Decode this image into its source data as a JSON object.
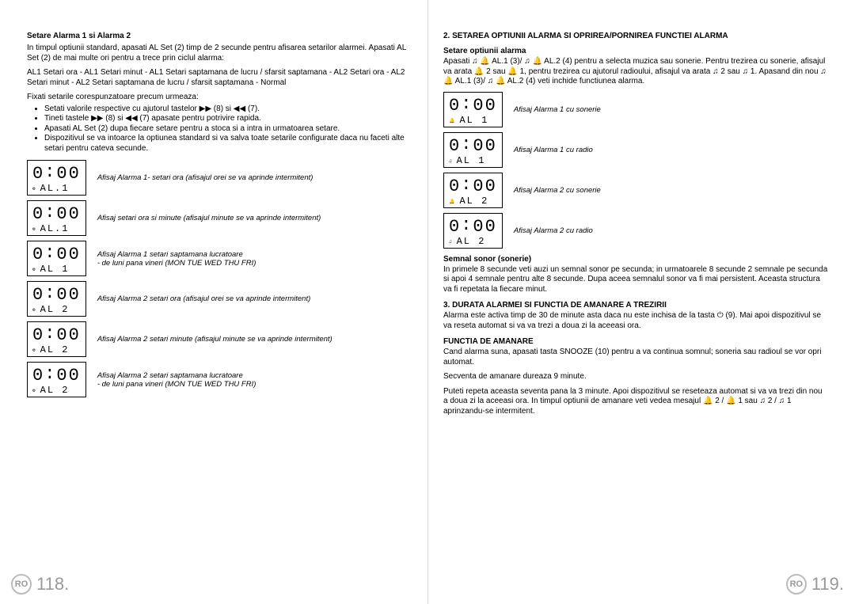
{
  "left": {
    "h_title": "Setare Alarma 1 si Alarma 2",
    "p1": "In timpul optiunii standard, apasati AL Set (2) timp de 2 secunde pentru afisarea setarilor alarmei. Apasati AL Set (2) de mai multe ori pentru a trece prin ciclul alarma:",
    "p2": "AL1 Setari ora - AL1 Setari minut - AL1 Setari saptamana de lucru / sfarsit saptamana - AL2 Setari ora - AL2 Setari minut - AL2 Setari saptamana de lucru / sfarsit saptamana - Normal",
    "p3": "Fixati setarile corespunzatoare precum urmeaza:",
    "bul1": "Setati valorile respective cu ajutorul tastelor ▶▶ (8) si ◀◀ (7).",
    "bul2": "Tineti tastele ▶▶ (8) si ◀◀ (7) apasate pentru potrivire rapida.",
    "bul3": "Apasati AL Set (2) dupa fiecare setare pentru a stoca si a intra in urmatoarea setare.",
    "bul4": "Dispozitivul se va intoarce la optiunea standard si va salva toate setarile configurate daca nu faceti alte setari pentru cateva secunde.",
    "lcds": [
      {
        "time": "0:00",
        "sub": "AL.1",
        "ind": "⚙",
        "cap": "Afisaj Alarma 1- setari ora (afisajul orei se va aprinde intermitent)"
      },
      {
        "time": "0:00",
        "sub": "AL.1",
        "ind": "⚙",
        "cap": "Afisaj setari ora si minute (afisajul minute se va aprinde intermitent)"
      },
      {
        "time": "0:00",
        "sub": "AL 1",
        "ind": "⚙",
        "cap": "Afisaj Alarma 1 setari saptamana lucratoare",
        "cap2": "- de luni pana vineri (MON TUE WED THU FRI)"
      },
      {
        "time": "0:00",
        "sub": "AL 2",
        "ind": "⚙",
        "cap": "Afisaj Alarma 2 setari ora (afisajul orei se va aprinde intermitent)"
      },
      {
        "time": "0:00",
        "sub": "AL 2",
        "ind": "⚙",
        "cap": "Afisaj Alarma 2 setari minute (afisajul minute se va aprinde intermitent)"
      },
      {
        "time": "0:00",
        "sub": "AL 2",
        "ind": "⚙",
        "cap": "Afisaj Alarma 2 setari saptamana lucratoare",
        "cap2": "- de luni pana vineri (MON TUE WED THU FRI)"
      }
    ],
    "pagenum": "118."
  },
  "right": {
    "h_title": "2.   SETAREA OPTIUNII ALARMA SI OPRIREA/PORNIREA FUNCTIEI ALARMA",
    "h_sub": "Setare optiunii alarma",
    "p1": "Apasati ♫ 🔔 AL.1 (3)/ ♫ 🔔 AL.2 (4) pentru a selecta muzica sau sonerie. Pentru trezirea cu sonerie, afisajul va arata 🔔 2 sau 🔔 1, pentru trezirea cu ajutorul radioului, afisajul va arata ♫ 2 sau ♫ 1. Apasand din nou ♫ 🔔 AL.1 (3)/ ♫ 🔔 AL.2 (4) veti inchide functiunea alarma.",
    "lcds": [
      {
        "time": "0:00",
        "sub": "AL 1",
        "ind": "🔔",
        "cap": "Afisaj Alarma 1 cu sonerie"
      },
      {
        "time": "0:00",
        "sub": "AL 1",
        "ind": "♫",
        "cap": "Afisaj Alarma 1 cu radio"
      },
      {
        "time": "0:00",
        "sub": "AL 2",
        "ind": "🔔",
        "cap": "Afisaj Alarma 2 cu sonerie"
      },
      {
        "time": "0:00",
        "sub": "AL 2",
        "ind": "♫",
        "cap": "Afisaj Alarma 2 cu radio"
      }
    ],
    "h_signal": "Semnal sonor (sonerie)",
    "p_signal": "In primele 8 secunde veti auzi un semnal sonor pe secunda; in urmatoarele 8 secunde 2 semnale pe secunda si apoi 4 semnale pentru alte 8 secunde. Dupa aceea semnalul sonor va fi mai persistent. Aceasta structura va fi repetata la fiecare minut.",
    "h_dur": "3.   DURATA ALARMEI SI FUNCTIA DE AMANARE A TREZIRII",
    "p_dur": "Alarma este activa timp de 30 de minute asta daca nu este inchisa de la tasta ⏻ (9). Mai apoi dispozitivul se va reseta automat si va va trezi a doua zi la aceeasi ora.",
    "h_aman": "FUNCTIA DE AMANARE",
    "p_aman1": "Cand alarma suna, apasati tasta SNOOZE (10) pentru a va continua somnul; soneria sau radioul se vor opri automat.",
    "p_aman2": "Secventa de amanare dureaza 9 minute.",
    "p_aman3": "Puteti repeta aceasta seventa pana la 3 minute. Apoi dispozitivul se reseteaza automat si va va trezi din nou a doua zi la aceeasi ora. In timpul optiunii de amanare veti vedea mesajul 🔔 2 / 🔔 1 sau ♫ 2 / ♫ 1 aprinzandu-se intermitent.",
    "pagenum": "119."
  },
  "ro_label": "RO"
}
